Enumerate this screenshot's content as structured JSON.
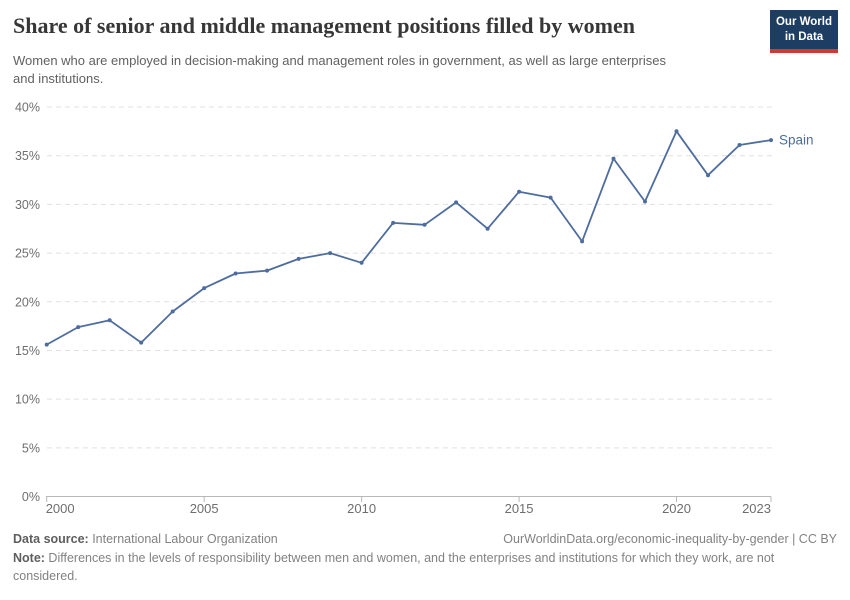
{
  "header": {
    "title": "Share of senior and middle management positions filled by women",
    "subtitle": "Women who are employed in decision-making and management roles in government, as well as large enterprises and institutions.",
    "logo": {
      "line1": "Our World",
      "line2": "in Data",
      "bg_color": "#1d3d63",
      "accent_color": "#cf3a31"
    }
  },
  "chart_data": {
    "type": "line",
    "title": "Share of senior and middle management positions filled by women",
    "subtitle": "Women who are employed in decision-making and management roles in government, as well as large enterprises and institutions.",
    "xlabel": "",
    "ylabel": "",
    "xlim": [
      2000,
      2023
    ],
    "ylim": [
      0,
      40
    ],
    "x_ticks": [
      2000,
      2005,
      2010,
      2015,
      2020,
      2023
    ],
    "y_ticks": [
      0,
      5,
      10,
      15,
      20,
      25,
      30,
      35,
      40
    ],
    "y_tick_suffix": "%",
    "grid": "horizontal-dashed",
    "legend_position": "end-of-line-label",
    "series": [
      {
        "name": "Spain",
        "color": "#4e6d9e",
        "x": [
          2000,
          2001,
          2002,
          2003,
          2004,
          2005,
          2006,
          2007,
          2008,
          2009,
          2010,
          2011,
          2012,
          2013,
          2014,
          2015,
          2016,
          2017,
          2018,
          2019,
          2020,
          2021,
          2022,
          2023
        ],
        "values": [
          15.6,
          17.4,
          18.1,
          15.8,
          19.0,
          21.4,
          22.9,
          23.2,
          24.4,
          25.0,
          24.0,
          28.1,
          27.9,
          30.2,
          27.5,
          31.3,
          30.7,
          26.2,
          34.7,
          30.3,
          37.5,
          33.0,
          36.1,
          36.6
        ]
      }
    ],
    "colors": {
      "gridline": "#e0e0e0",
      "axis": "#b8b8b8",
      "tick_label": "#6e6e6e"
    }
  },
  "footer": {
    "datasource_label": "Data source:",
    "datasource_value": " International Labour Organization",
    "attribution": "OurWorldinData.org/economic-inequality-by-gender | CC BY",
    "note_label": "Note:",
    "note_value": " Differences in the levels of responsibility between men and women, and the enterprises and institutions for which they work, are not considered."
  }
}
